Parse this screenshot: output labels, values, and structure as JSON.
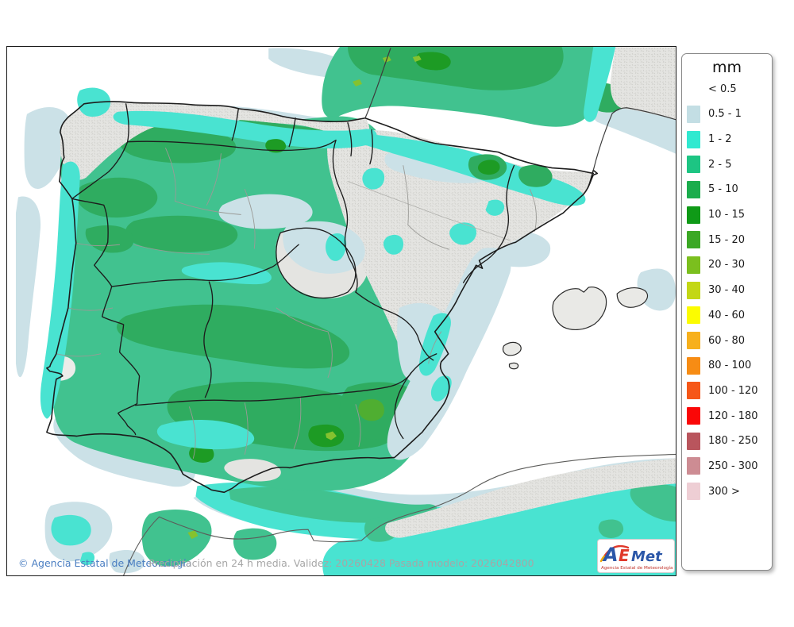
{
  "footer": {
    "copyright": "© Agencia Estatal de Meteorología",
    "caption": "Precipitación en 24 h media. Validez: 20260428 Pasada modelo: 2026042800"
  },
  "logo": {
    "a": "A",
    "e": "E",
    "met": "Met",
    "subtitle": "Agencia Estatal de Meteorología"
  },
  "legend": {
    "title": "mm",
    "no_swatch_label": "< 0.5",
    "entries": [
      {
        "label": "0.5 - 1",
        "color": "#C3DEE4"
      },
      {
        "label": "1 - 2",
        "color": "#30E9D0"
      },
      {
        "label": "2 - 5",
        "color": "#1DC583"
      },
      {
        "label": "5 - 10",
        "color": "#1BAD4D"
      },
      {
        "label": "10 - 15",
        "color": "#0F9A17"
      },
      {
        "label": "15 - 20",
        "color": "#3CA825"
      },
      {
        "label": "20 - 30",
        "color": "#7BBF1E"
      },
      {
        "label": "30 - 40",
        "color": "#C3D715"
      },
      {
        "label": "40 - 60",
        "color": "#FCFC00"
      },
      {
        "label": "60 - 80",
        "color": "#F7B01C"
      },
      {
        "label": "80 - 100",
        "color": "#F78C14"
      },
      {
        "label": "100 - 120",
        "color": "#F65718"
      },
      {
        "label": "120 - 180",
        "color": "#FA0707"
      },
      {
        "label": "180 - 250",
        "color": "#B9555D"
      },
      {
        "label": "250 - 300",
        "color": "#CD8C93"
      },
      {
        "label": "300 >",
        "color": "#EECED4"
      }
    ]
  },
  "palette": {
    "pale": "#CBE1E7",
    "cyan": "#49E3D1",
    "green": "#41C28F",
    "dgreen": "#2FAC60",
    "g1015": "#1D9B24",
    "g1520": "#4FAE31",
    "g2030": "#85C22F",
    "terrain": "#E4E4E1",
    "sea": "#FFFFFF"
  }
}
